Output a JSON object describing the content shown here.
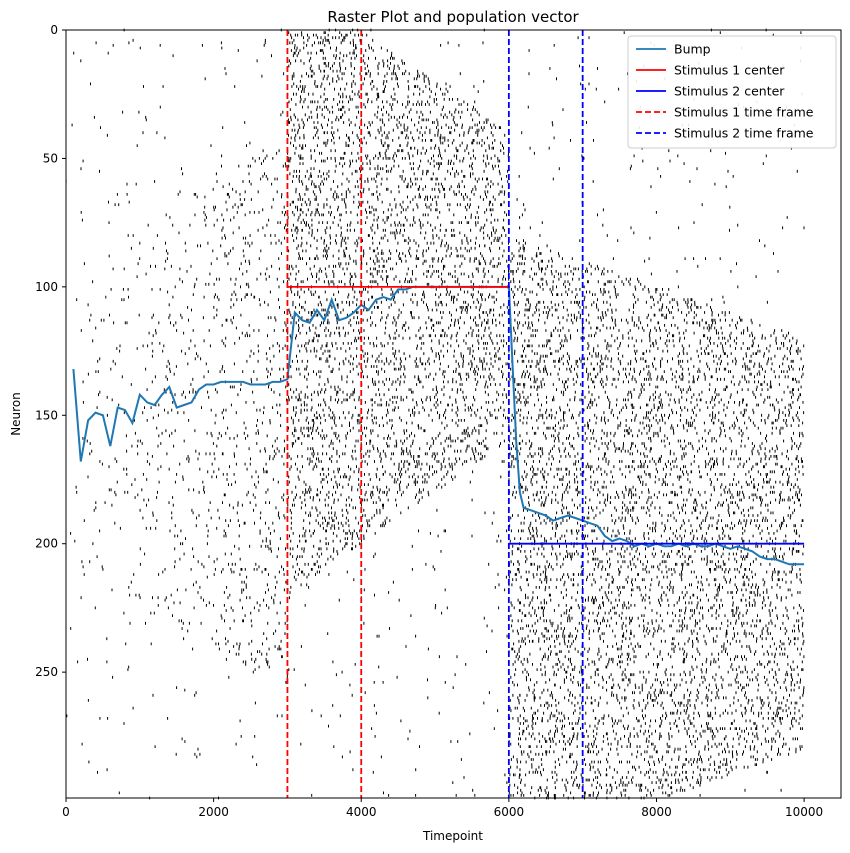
{
  "chart_data": {
    "type": "scatter",
    "title": "Raster Plot and population vector",
    "xlabel": "Timepoint",
    "ylabel": "Neuron",
    "xlim": [
      0,
      10500
    ],
    "ylim": [
      299,
      0
    ],
    "x_ticks": [
      "0",
      "2000",
      "4000",
      "6000",
      "8000",
      "10000"
    ],
    "y_ticks": [
      "0",
      "50",
      "100",
      "150",
      "200",
      "250"
    ],
    "legend_position": "top-right",
    "raster": {
      "description": "spike raster",
      "phases": [
        {
          "t_start": 0,
          "t_end": 3000,
          "center": 150,
          "spread": 110,
          "note": "broad tuning around neuron 150"
        },
        {
          "t_start": 3000,
          "t_end": 6000,
          "center": 100,
          "spread_start": 120,
          "spread_end": 60
        },
        {
          "t_start": 6000,
          "t_end": 10000,
          "center": 200,
          "spread_start": 120,
          "spread_end": 80
        }
      ]
    },
    "series": [
      {
        "name": "Bump",
        "color": "#1f77b4",
        "style": "solid",
        "x": [
          100,
          200,
          300,
          400,
          500,
          600,
          700,
          800,
          900,
          1000,
          1100,
          1200,
          1300,
          1400,
          1500,
          1600,
          1700,
          1800,
          1900,
          2000,
          2100,
          2200,
          2300,
          2400,
          2500,
          2600,
          2700,
          2800,
          2900,
          3000,
          3100,
          3200,
          3300,
          3400,
          3500,
          3600,
          3700,
          3800,
          3900,
          4000,
          4100,
          4200,
          4300,
          4400,
          4500,
          4600,
          4700,
          4800,
          4900,
          5000,
          5100,
          5200,
          5300,
          5400,
          5500,
          5600,
          5700,
          5800,
          5900,
          6000,
          6050,
          6100,
          6150,
          6200,
          6300,
          6400,
          6500,
          6600,
          6700,
          6800,
          6900,
          7000,
          7100,
          7200,
          7300,
          7400,
          7500,
          7600,
          7700,
          7800,
          7900,
          8000,
          8100,
          8200,
          8300,
          8400,
          8500,
          8600,
          8700,
          8800,
          8900,
          9000,
          9100,
          9200,
          9300,
          9400,
          9500,
          9600,
          9700,
          9800,
          9900,
          10000
        ],
        "y": [
          132,
          168,
          152,
          149,
          150,
          162,
          147,
          148,
          153,
          142,
          145,
          146,
          142,
          139,
          147,
          146,
          145,
          140,
          138,
          138,
          137,
          137,
          137,
          137,
          138,
          138,
          138,
          137,
          137,
          136,
          110,
          113,
          114,
          109,
          113,
          105,
          113,
          112,
          110,
          107,
          109,
          105,
          104,
          105,
          101,
          101,
          100,
          100,
          100,
          100,
          100,
          100,
          100,
          100,
          100,
          100,
          100,
          100,
          100,
          100,
          130,
          160,
          180,
          186,
          187,
          188,
          189,
          191,
          190,
          189,
          190,
          191,
          192,
          193,
          197,
          199,
          198,
          199,
          201,
          200,
          201,
          200,
          201,
          201,
          200,
          201,
          200,
          201,
          201,
          200,
          201,
          202,
          201,
          202,
          203,
          205,
          206,
          206,
          207,
          208,
          208,
          208
        ]
      },
      {
        "name": "Stimulus 1 center",
        "color": "#ff0000",
        "style": "solid",
        "x": [
          3000,
          6000
        ],
        "y": [
          100,
          100
        ]
      },
      {
        "name": "Stimulus 2 center",
        "color": "#0000ff",
        "style": "solid",
        "x": [
          6000,
          10000
        ],
        "y": [
          200,
          200
        ]
      },
      {
        "name": "Stimulus 1 time frame",
        "color": "#ff0000",
        "style": "dashed",
        "x": [
          3000,
          4000
        ]
      },
      {
        "name": "Stimulus 2 time frame",
        "color": "#0000ff",
        "style": "dashed",
        "x": [
          6000,
          7000
        ]
      }
    ]
  }
}
